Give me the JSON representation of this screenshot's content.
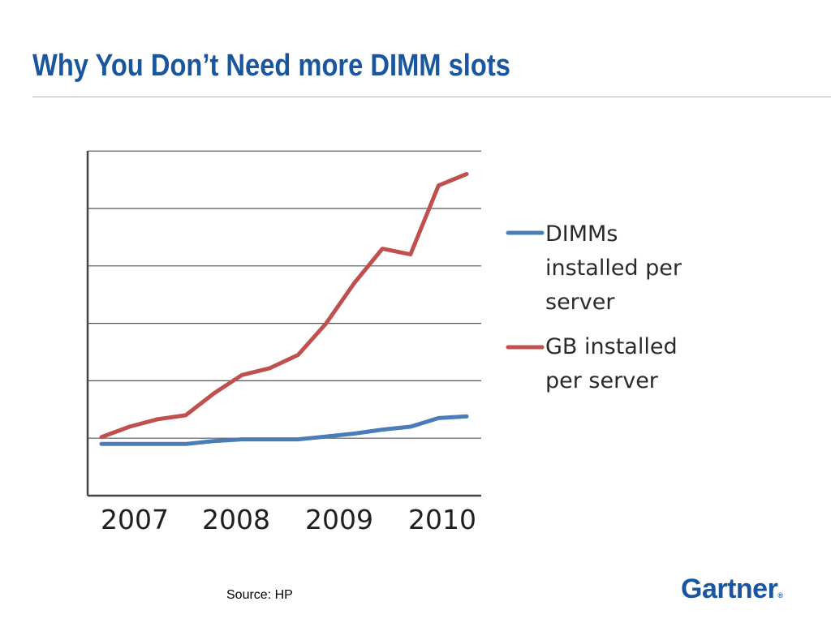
{
  "slide": {
    "title": "Why You Don’t Need more DIMM slots",
    "source": "Source: HP",
    "logo_text": "Gartner",
    "logo_mark": "®"
  },
  "colors": {
    "title": "#1a56a0",
    "rule": "#9fb6cc",
    "dimms_series": "#4a7db8",
    "gb_series": "#c0504d",
    "grid": "#555555"
  },
  "chart_data": {
    "type": "line",
    "x_tick_labels": [
      "2007",
      "2008",
      "2009",
      "2010"
    ],
    "xlim": [
      0,
      13
    ],
    "ylim": [
      0,
      6
    ],
    "y_gridlines": [
      1,
      2,
      3,
      4,
      5,
      6
    ],
    "grid": true,
    "legend_placement": "right",
    "x": [
      0,
      1,
      2,
      3,
      4,
      5,
      6,
      7,
      8,
      9,
      10,
      11,
      12,
      13
    ],
    "series": [
      {
        "name": "DIMMs installed per server",
        "legend_lines": [
          "DIMMs",
          "installed per",
          "server"
        ],
        "color": "#4a7db8",
        "values": [
          0.9,
          0.9,
          0.9,
          0.9,
          0.95,
          0.98,
          0.98,
          0.98,
          1.03,
          1.08,
          1.15,
          1.2,
          1.35,
          1.38
        ]
      },
      {
        "name": "GB installed per server",
        "legend_lines": [
          "GB installed",
          "per server"
        ],
        "color": "#c0504d",
        "values": [
          1.02,
          1.2,
          1.33,
          1.4,
          1.78,
          2.1,
          2.22,
          2.45,
          3.0,
          3.7,
          4.3,
          4.2,
          5.4,
          5.6
        ]
      }
    ]
  }
}
